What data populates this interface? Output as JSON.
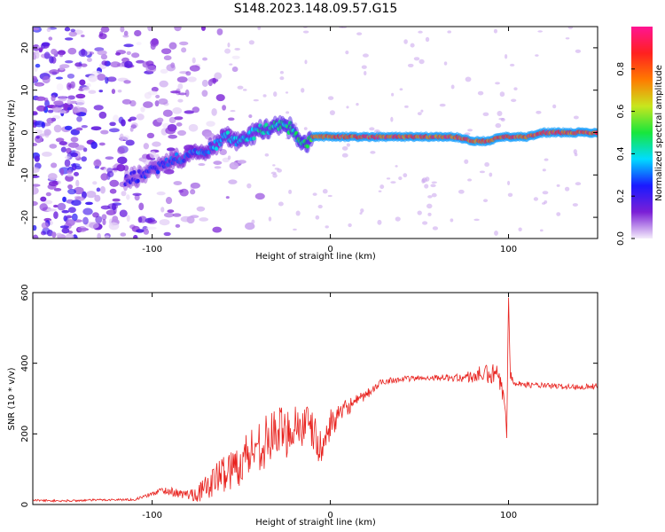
{
  "title": "S148.2023.148.09.57.G15",
  "chart_data": [
    {
      "type": "heatmap",
      "xlabel": "Height of straight line (km)",
      "ylabel": "Frequency (Hz)",
      "xlim": [
        -167,
        150
      ],
      "ylim": [
        -25,
        25
      ],
      "x_ticks": [
        -100,
        0,
        100
      ],
      "y_ticks": [
        -20,
        -10,
        0,
        10,
        20
      ],
      "colorbar": {
        "label": "Normalized spectral amplitude",
        "range": [
          0,
          1
        ],
        "ticks": [
          0.0,
          0.2,
          0.4,
          0.6,
          0.8
        ],
        "colors": [
          "#f4ecfb",
          "#7a1fd6",
          "#1a1aff",
          "#00dcff",
          "#18e63c",
          "#c8e61e",
          "#ff7a00",
          "#ff2020",
          "#ff1493"
        ]
      },
      "ridge": {
        "name": "",
        "x": [
          -115,
          -105,
          -95,
          -85,
          -75,
          -65,
          -58,
          -50,
          -42,
          -35,
          -28,
          -22,
          -18,
          -14,
          -10,
          -5,
          0,
          20,
          40,
          60,
          70,
          80,
          85,
          90,
          95,
          100,
          110,
          120,
          130,
          140,
          150
        ],
        "y": [
          -11,
          -10,
          -8,
          -6,
          -5,
          -3,
          -1,
          -2,
          0,
          1,
          2,
          1,
          -2,
          -3,
          -1,
          -1,
          -1,
          -1,
          -1,
          -1,
          -1,
          -2,
          -2,
          -2,
          -1,
          -1,
          -1,
          0,
          0,
          0,
          0
        ]
      }
    },
    {
      "type": "line",
      "xlabel": "Height of straight line (km)",
      "ylabel": "SNR (10 * v/v)",
      "xlim": [
        -167,
        150
      ],
      "ylim": [
        0,
        600
      ],
      "x_ticks": [
        -100,
        0,
        100
      ],
      "y_ticks": [
        0,
        200,
        400,
        600
      ],
      "color": "#e8231f",
      "series": [
        {
          "name": "",
          "x": [
            -167,
            -150,
            -130,
            -110,
            -100,
            -95,
            -90,
            -85,
            -80,
            -75,
            -70,
            -65,
            -60,
            -55,
            -50,
            -45,
            -40,
            -35,
            -30,
            -25,
            -20,
            -15,
            -10,
            -5,
            0,
            5,
            10,
            15,
            20,
            25,
            30,
            40,
            50,
            60,
            70,
            80,
            85,
            90,
            93,
            96,
            98,
            99,
            100,
            101,
            102,
            104,
            108,
            115,
            125,
            135,
            150
          ],
          "y": [
            12,
            10,
            13,
            14,
            30,
            40,
            38,
            30,
            28,
            32,
            45,
            70,
            90,
            100,
            120,
            150,
            170,
            180,
            210,
            200,
            230,
            220,
            210,
            150,
            230,
            250,
            280,
            290,
            310,
            330,
            350,
            355,
            358,
            360,
            358,
            362,
            370,
            365,
            370,
            330,
            280,
            190,
            600,
            380,
            360,
            345,
            340,
            338,
            335,
            333,
            335
          ],
          "amp": [
            3,
            3,
            3,
            3,
            6,
            10,
            12,
            12,
            15,
            25,
            35,
            45,
            55,
            60,
            65,
            75,
            75,
            75,
            75,
            70,
            70,
            70,
            60,
            50,
            40,
            30,
            25,
            20,
            15,
            12,
            10,
            8,
            8,
            8,
            10,
            20,
            25,
            30,
            35,
            25,
            20,
            10,
            5,
            25,
            15,
            10,
            8,
            8,
            8,
            8,
            8
          ]
        }
      ]
    }
  ]
}
